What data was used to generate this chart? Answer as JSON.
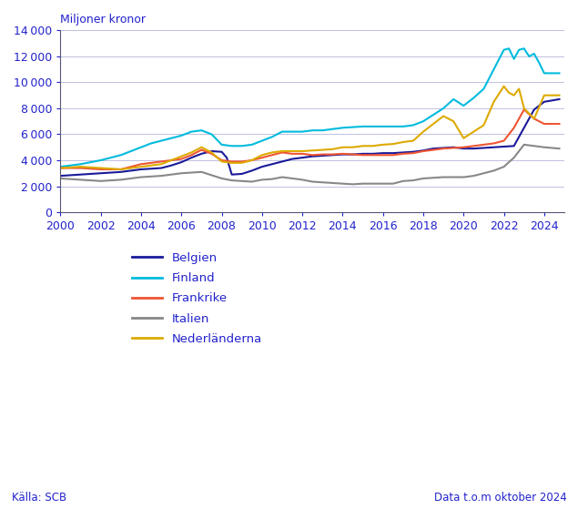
{
  "title_ylabel": "Miljoner kronor",
  "source_left": "Källa: SCB",
  "source_right": "Data t.o.m oktober 2024",
  "text_color": "#2222cc",
  "background_color": "#ffffff",
  "ylim": [
    0,
    14000
  ],
  "yticks": [
    0,
    2000,
    4000,
    6000,
    8000,
    10000,
    12000,
    14000
  ],
  "xlim": [
    2000,
    2025
  ],
  "xticks": [
    2000,
    2002,
    2004,
    2006,
    2008,
    2010,
    2012,
    2014,
    2016,
    2018,
    2020,
    2022,
    2024
  ],
  "series": {
    "Belgien": {
      "color": "#1a1a99",
      "data_x": [
        2000,
        2000.5,
        2001,
        2001.5,
        2002,
        2002.5,
        2003,
        2003.5,
        2004,
        2004.5,
        2005,
        2005.5,
        2006,
        2006.5,
        2007,
        2007.5,
        2008,
        2008.25,
        2008.5,
        2009,
        2009.5,
        2010,
        2010.5,
        2011,
        2011.5,
        2012,
        2012.5,
        2013,
        2013.5,
        2014,
        2014.5,
        2015,
        2015.5,
        2016,
        2016.5,
        2017,
        2017.5,
        2018,
        2018.5,
        2019,
        2019.5,
        2020,
        2020.5,
        2021,
        2021.5,
        2022,
        2022.5,
        2023,
        2023.5,
        2024,
        2024.75
      ],
      "data_y": [
        2800,
        2850,
        2900,
        2950,
        3000,
        3050,
        3100,
        3200,
        3300,
        3350,
        3400,
        3600,
        3850,
        4200,
        4500,
        4700,
        4650,
        4200,
        2900,
        2950,
        3200,
        3500,
        3700,
        3900,
        4100,
        4200,
        4300,
        4350,
        4400,
        4450,
        4450,
        4500,
        4500,
        4550,
        4550,
        4600,
        4650,
        4750,
        4900,
        4950,
        5000,
        4900,
        4900,
        4950,
        5000,
        5050,
        5100,
        6500,
        7900,
        8500,
        8700
      ]
    },
    "Finland": {
      "color": "#00bbdd",
      "data_x": [
        2000,
        2000.5,
        2001,
        2001.5,
        2002,
        2002.5,
        2003,
        2003.5,
        2004,
        2004.5,
        2005,
        2005.5,
        2006,
        2006.5,
        2007,
        2007.5,
        2008,
        2008.5,
        2009,
        2009.5,
        2010,
        2010.5,
        2011,
        2011.5,
        2012,
        2012.5,
        2013,
        2013.5,
        2014,
        2014.5,
        2015,
        2015.5,
        2016,
        2016.5,
        2017,
        2017.5,
        2018,
        2018.5,
        2019,
        2019.5,
        2020,
        2020.5,
        2021,
        2021.5,
        2022,
        2022.25,
        2022.5,
        2022.75,
        2023,
        2023.25,
        2023.5,
        2023.75,
        2024,
        2024.75
      ],
      "data_y": [
        3500,
        3600,
        3700,
        3850,
        4000,
        4200,
        4400,
        4700,
        5000,
        5300,
        5500,
        5700,
        5900,
        6200,
        6300,
        6000,
        5200,
        5100,
        5100,
        5200,
        5500,
        5800,
        6200,
        6200,
        6200,
        6300,
        6300,
        6400,
        6500,
        6550,
        6600,
        6600,
        6600,
        6600,
        6600,
        6700,
        7000,
        7500,
        8000,
        8700,
        8200,
        8800,
        9500,
        11000,
        12500,
        12600,
        11800,
        12500,
        12600,
        12000,
        12200,
        11500,
        10700,
        10700
      ]
    },
    "Frankrike": {
      "color": "#ee5533",
      "data_x": [
        2000,
        2000.5,
        2001,
        2001.5,
        2002,
        2002.5,
        2003,
        2003.5,
        2004,
        2004.5,
        2005,
        2005.5,
        2006,
        2006.5,
        2007,
        2007.5,
        2008,
        2008.5,
        2009,
        2009.5,
        2010,
        2010.5,
        2011,
        2011.5,
        2012,
        2012.5,
        2013,
        2013.5,
        2014,
        2014.5,
        2015,
        2015.5,
        2016,
        2016.5,
        2017,
        2017.5,
        2018,
        2018.5,
        2019,
        2019.5,
        2020,
        2020.5,
        2021,
        2021.5,
        2022,
        2022.5,
        2023,
        2023.5,
        2024,
        2024.75
      ],
      "data_y": [
        3400,
        3400,
        3400,
        3350,
        3300,
        3300,
        3300,
        3500,
        3700,
        3800,
        3900,
        4000,
        4100,
        4400,
        4800,
        4500,
        4000,
        3900,
        3900,
        4000,
        4200,
        4400,
        4600,
        4500,
        4500,
        4400,
        4450,
        4450,
        4500,
        4450,
        4400,
        4400,
        4400,
        4400,
        4500,
        4550,
        4700,
        4800,
        4900,
        4950,
        5000,
        5100,
        5200,
        5300,
        5500,
        6500,
        7900,
        7200,
        6800,
        6800
      ]
    },
    "Italien": {
      "color": "#888888",
      "data_x": [
        2000,
        2000.5,
        2001,
        2001.5,
        2002,
        2002.5,
        2003,
        2003.5,
        2004,
        2004.5,
        2005,
        2005.5,
        2006,
        2006.5,
        2007,
        2007.5,
        2008,
        2008.5,
        2009,
        2009.5,
        2010,
        2010.5,
        2011,
        2011.5,
        2012,
        2012.5,
        2013,
        2013.5,
        2014,
        2014.5,
        2015,
        2015.5,
        2016,
        2016.5,
        2017,
        2017.5,
        2018,
        2018.5,
        2019,
        2019.5,
        2020,
        2020.5,
        2021,
        2021.5,
        2022,
        2022.5,
        2023,
        2023.5,
        2024,
        2024.75
      ],
      "data_y": [
        2600,
        2550,
        2500,
        2450,
        2400,
        2450,
        2500,
        2600,
        2700,
        2750,
        2800,
        2900,
        3000,
        3050,
        3100,
        2850,
        2600,
        2450,
        2400,
        2350,
        2500,
        2550,
        2700,
        2600,
        2500,
        2350,
        2300,
        2250,
        2200,
        2150,
        2200,
        2200,
        2200,
        2200,
        2400,
        2450,
        2600,
        2650,
        2700,
        2700,
        2700,
        2800,
        3000,
        3200,
        3500,
        4200,
        5200,
        5100,
        5000,
        4900
      ]
    },
    "Nederländerna": {
      "color": "#ddaa00",
      "data_x": [
        2000,
        2000.5,
        2001,
        2001.5,
        2002,
        2002.5,
        2003,
        2003.5,
        2004,
        2004.5,
        2005,
        2005.5,
        2006,
        2006.5,
        2007,
        2007.5,
        2008,
        2008.5,
        2009,
        2009.5,
        2010,
        2010.5,
        2011,
        2011.5,
        2012,
        2012.5,
        2013,
        2013.5,
        2014,
        2014.5,
        2015,
        2015.5,
        2016,
        2016.5,
        2017,
        2017.5,
        2018,
        2018.5,
        2019,
        2019.5,
        2020,
        2020.5,
        2021,
        2021.5,
        2022,
        2022.25,
        2022.5,
        2022.75,
        2023,
        2023.5,
        2024,
        2024.75
      ],
      "data_y": [
        3400,
        3450,
        3500,
        3450,
        3400,
        3350,
        3300,
        3400,
        3500,
        3600,
        3700,
        4000,
        4300,
        4600,
        5000,
        4600,
        3900,
        3800,
        3800,
        4000,
        4400,
        4600,
        4700,
        4700,
        4700,
        4750,
        4800,
        4850,
        5000,
        5000,
        5100,
        5100,
        5200,
        5250,
        5400,
        5500,
        6200,
        6800,
        7400,
        7000,
        5700,
        6200,
        6700,
        8500,
        9700,
        9200,
        9000,
        9500,
        8000,
        7200,
        9000,
        9000
      ]
    }
  },
  "legend_order": [
    "Belgien",
    "Finland",
    "Frankrike",
    "Italien",
    "Nederländerna"
  ]
}
